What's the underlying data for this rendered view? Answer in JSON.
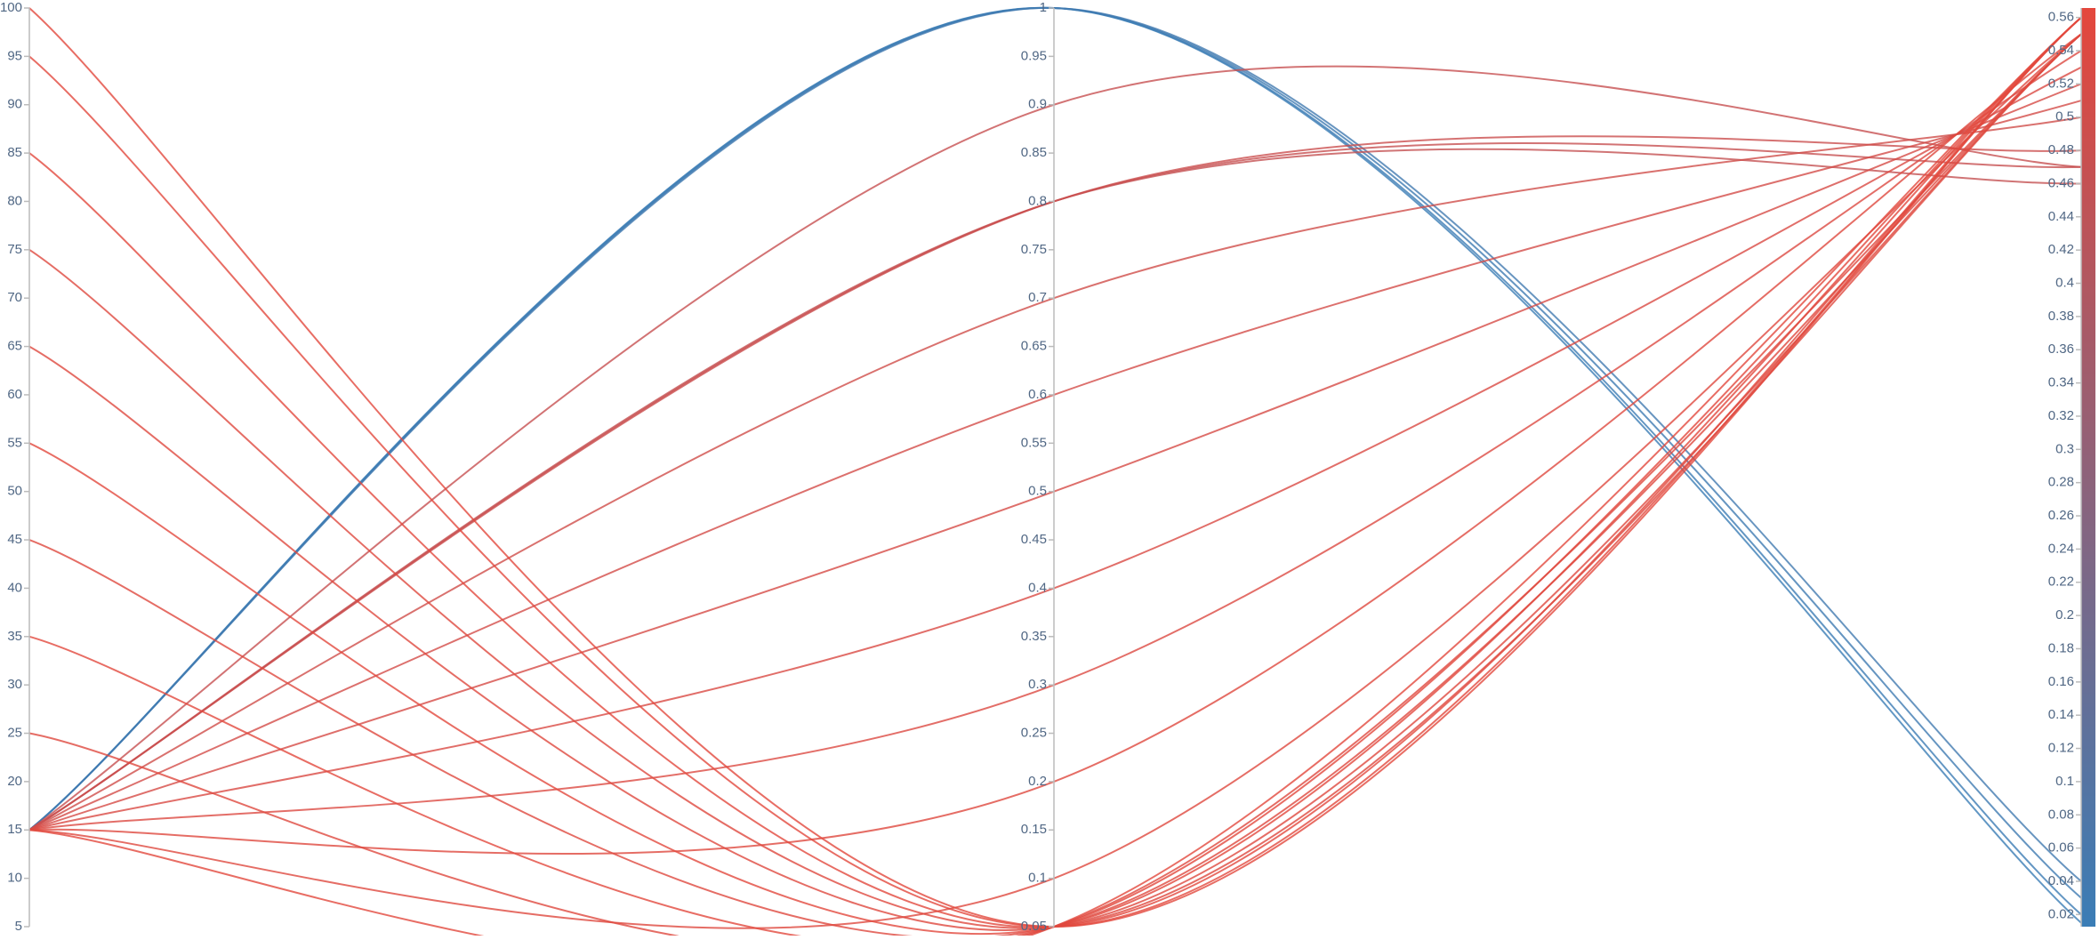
{
  "chart_data": {
    "type": "parallel",
    "axes": [
      {
        "lim": [
          5,
          100
        ],
        "ticks": [
          5,
          10,
          15,
          20,
          25,
          30,
          35,
          40,
          45,
          50,
          55,
          60,
          65,
          70,
          75,
          80,
          85,
          90,
          95,
          100
        ]
      },
      {
        "lim": [
          0.05,
          1
        ],
        "ticks": [
          0.05,
          0.1,
          0.15,
          0.2,
          0.25,
          0.3,
          0.35,
          0.4,
          0.45,
          0.5,
          0.55,
          0.6,
          0.65,
          0.7,
          0.75,
          0.8,
          0.85,
          0.9,
          0.95,
          1
        ]
      },
      {
        "lim": [
          0.0127,
          0.5657
        ],
        "ticks": [
          0.02,
          0.04,
          0.06,
          0.08,
          0.1,
          0.12,
          0.14,
          0.16,
          0.18,
          0.2,
          0.22,
          0.24,
          0.26,
          0.28,
          0.3,
          0.32,
          0.34,
          0.36,
          0.38,
          0.4,
          0.42,
          0.44,
          0.46,
          0.48,
          0.5,
          0.52,
          0.54,
          0.56
        ],
        "colorbar": true
      }
    ],
    "colorscale": [
      "#3a7db6",
      "#e4473c"
    ],
    "series": [
      {
        "values": [
          15,
          1,
          0.02
        ]
      },
      {
        "values": [
          15,
          1,
          0.03
        ]
      },
      {
        "values": [
          15,
          1,
          0.015
        ]
      },
      {
        "values": [
          15,
          1,
          0.04
        ]
      },
      {
        "values": [
          15,
          0.9,
          0.47
        ]
      },
      {
        "values": [
          15,
          0.8,
          0.46
        ]
      },
      {
        "values": [
          15,
          0.8,
          0.47
        ]
      },
      {
        "values": [
          15,
          0.8,
          0.48
        ]
      },
      {
        "values": [
          15,
          0.7,
          0.5
        ]
      },
      {
        "values": [
          15,
          0.6,
          0.51
        ]
      },
      {
        "values": [
          15,
          0.5,
          0.52
        ]
      },
      {
        "values": [
          15,
          0.4,
          0.53
        ]
      },
      {
        "values": [
          15,
          0.3,
          0.54
        ]
      },
      {
        "values": [
          15,
          0.2,
          0.55
        ]
      },
      {
        "values": [
          15,
          0.1,
          0.55
        ]
      },
      {
        "values": [
          15,
          0.05,
          0.56
        ]
      },
      {
        "values": [
          100,
          0.05,
          0.56
        ]
      },
      {
        "values": [
          95,
          0.05,
          0.56
        ]
      },
      {
        "values": [
          85,
          0.05,
          0.56
        ]
      },
      {
        "values": [
          75,
          0.05,
          0.55
        ]
      },
      {
        "values": [
          65,
          0.05,
          0.55
        ]
      },
      {
        "values": [
          55,
          0.05,
          0.56
        ]
      },
      {
        "values": [
          45,
          0.05,
          0.55
        ]
      },
      {
        "values": [
          35,
          0.05,
          0.56
        ]
      },
      {
        "values": [
          25,
          0.05,
          0.55
        ]
      }
    ]
  }
}
